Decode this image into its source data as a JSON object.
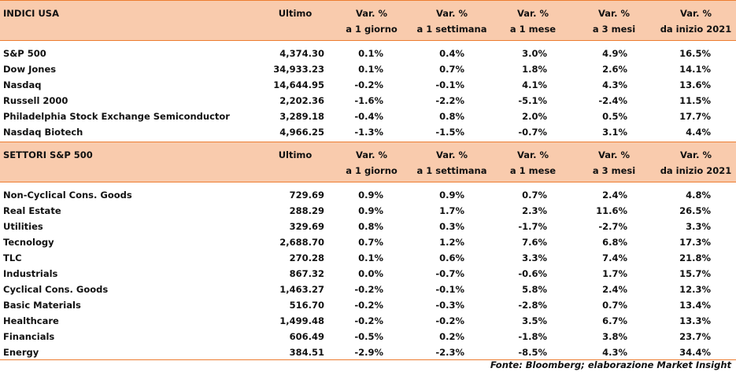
{
  "tables": [
    {
      "header": {
        "title": "INDICI USA",
        "columns": [
          [
            "Ultimo"
          ],
          [
            "Var. %",
            "a 1 giorno"
          ],
          [
            "Var. %",
            "a 1 settimana"
          ],
          [
            "Var. %",
            "a 1 mese"
          ],
          [
            "Var. %",
            "a 3 mesi"
          ],
          [
            "Var. %",
            "da inizio 2021"
          ]
        ]
      },
      "rows": [
        [
          "S&P 500",
          "4,374.30",
          "0.1%",
          "0.4%",
          "3.0%",
          "4.9%",
          "16.5%"
        ],
        [
          "Dow Jones",
          "34,933.23",
          "0.1%",
          "0.7%",
          "1.8%",
          "2.6%",
          "14.1%"
        ],
        [
          "Nasdaq",
          "14,644.95",
          "-0.2%",
          "-0.1%",
          "4.1%",
          "4.3%",
          "13.6%"
        ],
        [
          "Russell 2000",
          "2,202.36",
          "-1.6%",
          "-2.2%",
          "-5.1%",
          "-2.4%",
          "11.5%"
        ],
        [
          "Philadelphia Stock Exchange Semiconductor",
          "3,289.18",
          "-0.4%",
          "0.8%",
          "2.0%",
          "0.5%",
          "17.7%"
        ],
        [
          "Nasdaq Biotech",
          "4,966.25",
          "-1.3%",
          "-1.5%",
          "-0.7%",
          "3.1%",
          "4.4%"
        ]
      ]
    },
    {
      "header": {
        "title": "SETTORI S&P 500",
        "columns": [
          [
            "Ultimo"
          ],
          [
            "Var. %",
            "a 1 giorno"
          ],
          [
            "Var. %",
            "a 1 settimana"
          ],
          [
            "Var. %",
            "a 1 mese"
          ],
          [
            "Var. %",
            "a 3 mesi"
          ],
          [
            "Var. %",
            "da inizio 2021"
          ]
        ]
      },
      "rows": [
        [
          "Non-Cyclical Cons. Goods",
          "729.69",
          "0.9%",
          "0.9%",
          "0.7%",
          "2.4%",
          "4.8%"
        ],
        [
          "Real Estate",
          "288.29",
          "0.9%",
          "1.7%",
          "2.3%",
          "11.6%",
          "26.5%"
        ],
        [
          "Utilities",
          "329.69",
          "0.8%",
          "0.3%",
          "-1.7%",
          "-2.7%",
          "3.3%"
        ],
        [
          "Tecnology",
          "2,688.70",
          "0.7%",
          "1.2%",
          "7.6%",
          "6.8%",
          "17.3%"
        ],
        [
          "TLC",
          "270.28",
          "0.1%",
          "0.6%",
          "3.3%",
          "7.4%",
          "21.8%"
        ],
        [
          "Industrials",
          "867.32",
          "0.0%",
          "-0.7%",
          "-0.6%",
          "1.7%",
          "15.7%"
        ],
        [
          "Cyclical Cons. Goods",
          "1,463.27",
          "-0.2%",
          "-0.1%",
          "5.8%",
          "2.4%",
          "12.3%"
        ],
        [
          "Basic Materials",
          "516.70",
          "-0.2%",
          "-0.3%",
          "-2.8%",
          "0.7%",
          "13.4%"
        ],
        [
          "Healthcare",
          "1,499.48",
          "-0.2%",
          "-0.2%",
          "3.5%",
          "6.7%",
          "13.3%"
        ],
        [
          "Financials",
          "606.49",
          "-0.5%",
          "0.2%",
          "-1.8%",
          "3.8%",
          "23.7%"
        ],
        [
          "Energy",
          "384.51",
          "-2.9%",
          "-2.3%",
          "-8.5%",
          "4.3%",
          "34.4%"
        ]
      ]
    }
  ],
  "footer": "Fonte: Bloomberg; elaborazione Market Insight"
}
